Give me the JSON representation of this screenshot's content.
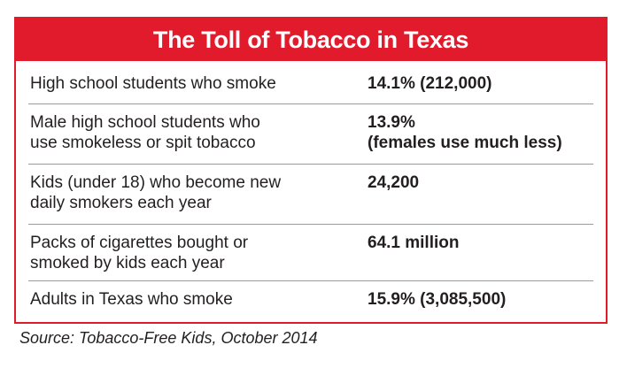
{
  "title": "The Toll of Tobacco in Texas",
  "rows": [
    {
      "label_lines": [
        "High school students who smoke"
      ],
      "value_lines": [
        "14.1% (212,000)"
      ]
    },
    {
      "label_lines": [
        "Male high school students who",
        "use smokeless or spit tobacco"
      ],
      "value_lines": [
        "13.9%",
        "(females use much less)"
      ]
    },
    {
      "label_lines": [
        "Kids (under 18) who become new",
        "daily smokers each year"
      ],
      "value_lines": [
        "24,200"
      ]
    },
    {
      "label_lines": [
        "Packs of cigarettes bought or",
        "smoked by kids each year"
      ],
      "value_lines": [
        "64.1 million"
      ]
    },
    {
      "label_lines": [
        "Adults in Texas who smoke"
      ],
      "value_lines": [
        "15.9% (3,085,500)"
      ]
    }
  ],
  "source": "Source: Tobacco-Free Kids, October 2014",
  "colors": {
    "accent": "#e21b2c",
    "text": "#231f20",
    "divider": "#9b9b9b"
  }
}
